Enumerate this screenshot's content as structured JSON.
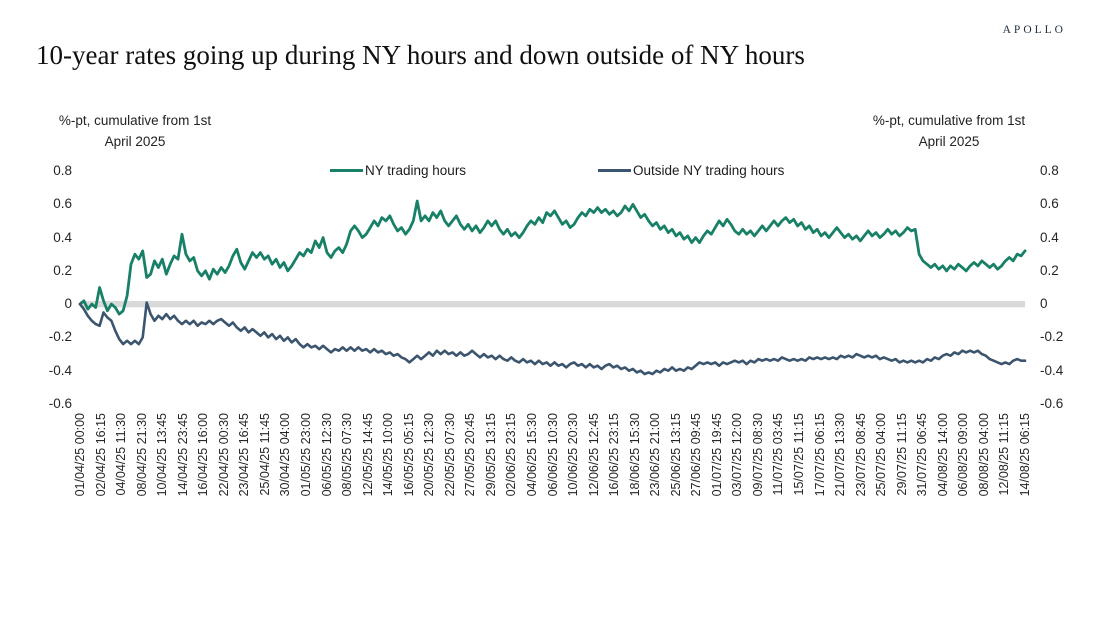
{
  "brand": "APOLLO",
  "title": "10-year rates going up during NY hours and down outside of NY hours",
  "chart_data": {
    "type": "line",
    "title": "10-year rates going up during NY hours and down outside of NY hours",
    "caption_left": {
      "line1": "%-pt, cumulative from 1st",
      "line2": "April 2025"
    },
    "caption_right": {
      "line1": "%-pt, cumulative from 1st",
      "line2": "April 2025"
    },
    "y_axis": {
      "tick_labels": [
        "0.8",
        "0.6",
        "0.4",
        "0.2",
        "0",
        "-0.2",
        "-0.4",
        "-0.6"
      ],
      "range": [
        -0.6,
        0.8
      ],
      "dual_sided": true,
      "grid": false
    },
    "zero_band_color": "#d9d9d9",
    "legend_position": "top-inside",
    "x_ticks": [
      "01/04/25 00:00",
      "02/04/25 16:15",
      "04/04/25 11:30",
      "08/04/25 21:30",
      "10/04/25 13:45",
      "14/04/25 23:45",
      "16/04/25 16:00",
      "22/04/25 00:30",
      "23/04/25 16:45",
      "25/04/25 11:45",
      "30/04/25 04:00",
      "01/05/25 23:00",
      "06/05/25 12:30",
      "08/05/25 07:30",
      "12/05/25 14:45",
      "14/05/25 10:00",
      "16/05/25 05:15",
      "20/05/25 12:30",
      "22/05/25 07:30",
      "27/05/25 20:45",
      "29/05/25 13:15",
      "02/06/25 23:15",
      "04/06/25 15:30",
      "06/06/25 10:30",
      "10/06/25 20:30",
      "12/06/25 12:45",
      "16/06/25 23:15",
      "18/06/25 15:30",
      "23/06/25 21:00",
      "25/06/25 13:15",
      "27/06/25 09:45",
      "01/07/25 19:45",
      "03/07/25 12:00",
      "09/07/25 08:30",
      "11/07/25 03:45",
      "15/07/25 11:15",
      "17/07/25 06:15",
      "21/07/25 13:30",
      "23/07/25 08:45",
      "25/07/25 04:00",
      "29/07/25 11:15",
      "31/07/25 06:45",
      "04/08/25 14:00",
      "06/08/25 09:00",
      "08/08/25 04:00",
      "12/08/25 11:15",
      "14/08/25 06:15"
    ],
    "series": [
      {
        "name": "NY trading hours",
        "color": "#178066",
        "values": [
          0.0,
          0.02,
          -0.03,
          0.0,
          -0.02,
          0.1,
          0.02,
          -0.04,
          0.0,
          -0.02,
          -0.06,
          -0.04,
          0.05,
          0.24,
          0.3,
          0.27,
          0.32,
          0.16,
          0.18,
          0.26,
          0.22,
          0.27,
          0.18,
          0.24,
          0.29,
          0.27,
          0.42,
          0.3,
          0.26,
          0.28,
          0.2,
          0.17,
          0.2,
          0.15,
          0.21,
          0.18,
          0.22,
          0.19,
          0.23,
          0.29,
          0.33,
          0.25,
          0.21,
          0.26,
          0.31,
          0.28,
          0.31,
          0.27,
          0.29,
          0.24,
          0.27,
          0.22,
          0.25,
          0.2,
          0.23,
          0.27,
          0.31,
          0.29,
          0.33,
          0.31,
          0.38,
          0.34,
          0.4,
          0.31,
          0.28,
          0.32,
          0.34,
          0.31,
          0.36,
          0.44,
          0.47,
          0.44,
          0.4,
          0.42,
          0.46,
          0.5,
          0.47,
          0.52,
          0.5,
          0.53,
          0.48,
          0.44,
          0.46,
          0.42,
          0.45,
          0.5,
          0.62,
          0.5,
          0.53,
          0.5,
          0.55,
          0.52,
          0.56,
          0.5,
          0.47,
          0.5,
          0.53,
          0.48,
          0.45,
          0.48,
          0.44,
          0.47,
          0.43,
          0.46,
          0.5,
          0.47,
          0.5,
          0.45,
          0.42,
          0.45,
          0.41,
          0.43,
          0.4,
          0.43,
          0.47,
          0.5,
          0.48,
          0.52,
          0.49,
          0.55,
          0.53,
          0.56,
          0.52,
          0.48,
          0.5,
          0.46,
          0.48,
          0.52,
          0.55,
          0.53,
          0.57,
          0.55,
          0.58,
          0.55,
          0.57,
          0.54,
          0.56,
          0.53,
          0.55,
          0.59,
          0.56,
          0.6,
          0.56,
          0.52,
          0.54,
          0.5,
          0.47,
          0.49,
          0.45,
          0.47,
          0.43,
          0.45,
          0.41,
          0.43,
          0.39,
          0.41,
          0.37,
          0.4,
          0.37,
          0.41,
          0.44,
          0.42,
          0.46,
          0.5,
          0.47,
          0.51,
          0.48,
          0.44,
          0.42,
          0.45,
          0.42,
          0.44,
          0.41,
          0.44,
          0.47,
          0.44,
          0.47,
          0.5,
          0.47,
          0.5,
          0.52,
          0.49,
          0.51,
          0.47,
          0.49,
          0.45,
          0.47,
          0.43,
          0.45,
          0.41,
          0.43,
          0.4,
          0.43,
          0.46,
          0.43,
          0.4,
          0.42,
          0.39,
          0.41,
          0.38,
          0.41,
          0.44,
          0.41,
          0.43,
          0.4,
          0.42,
          0.45,
          0.42,
          0.44,
          0.41,
          0.43,
          0.46,
          0.44,
          0.45,
          0.3,
          0.26,
          0.24,
          0.22,
          0.24,
          0.21,
          0.23,
          0.2,
          0.23,
          0.21,
          0.24,
          0.22,
          0.2,
          0.23,
          0.25,
          0.23,
          0.26,
          0.24,
          0.22,
          0.24,
          0.21,
          0.23,
          0.26,
          0.28,
          0.26,
          0.3,
          0.29,
          0.32
        ]
      },
      {
        "name": "Outside NY trading hours",
        "color": "#3c556e",
        "values": [
          0.0,
          -0.03,
          -0.07,
          -0.1,
          -0.12,
          -0.13,
          -0.05,
          -0.08,
          -0.1,
          -0.16,
          -0.21,
          -0.24,
          -0.22,
          -0.24,
          -0.22,
          -0.24,
          -0.2,
          0.01,
          -0.06,
          -0.1,
          -0.07,
          -0.09,
          -0.06,
          -0.09,
          -0.07,
          -0.1,
          -0.12,
          -0.1,
          -0.12,
          -0.1,
          -0.13,
          -0.11,
          -0.12,
          -0.1,
          -0.12,
          -0.1,
          -0.09,
          -0.11,
          -0.13,
          -0.11,
          -0.14,
          -0.16,
          -0.14,
          -0.17,
          -0.15,
          -0.17,
          -0.19,
          -0.17,
          -0.2,
          -0.18,
          -0.21,
          -0.19,
          -0.22,
          -0.2,
          -0.23,
          -0.21,
          -0.24,
          -0.26,
          -0.24,
          -0.26,
          -0.25,
          -0.27,
          -0.25,
          -0.27,
          -0.29,
          -0.27,
          -0.28,
          -0.26,
          -0.28,
          -0.26,
          -0.28,
          -0.26,
          -0.28,
          -0.27,
          -0.29,
          -0.27,
          -0.29,
          -0.28,
          -0.3,
          -0.29,
          -0.31,
          -0.3,
          -0.32,
          -0.33,
          -0.35,
          -0.33,
          -0.31,
          -0.33,
          -0.31,
          -0.29,
          -0.31,
          -0.28,
          -0.3,
          -0.28,
          -0.3,
          -0.29,
          -0.31,
          -0.29,
          -0.31,
          -0.3,
          -0.28,
          -0.3,
          -0.32,
          -0.3,
          -0.32,
          -0.31,
          -0.33,
          -0.31,
          -0.33,
          -0.34,
          -0.32,
          -0.34,
          -0.35,
          -0.33,
          -0.35,
          -0.34,
          -0.36,
          -0.34,
          -0.36,
          -0.35,
          -0.37,
          -0.35,
          -0.37,
          -0.36,
          -0.38,
          -0.36,
          -0.35,
          -0.37,
          -0.36,
          -0.38,
          -0.36,
          -0.38,
          -0.37,
          -0.39,
          -0.37,
          -0.36,
          -0.38,
          -0.37,
          -0.39,
          -0.38,
          -0.4,
          -0.39,
          -0.41,
          -0.4,
          -0.42,
          -0.41,
          -0.42,
          -0.4,
          -0.41,
          -0.39,
          -0.4,
          -0.38,
          -0.4,
          -0.39,
          -0.4,
          -0.38,
          -0.39,
          -0.37,
          -0.35,
          -0.36,
          -0.35,
          -0.36,
          -0.35,
          -0.37,
          -0.35,
          -0.36,
          -0.35,
          -0.34,
          -0.35,
          -0.34,
          -0.36,
          -0.34,
          -0.35,
          -0.33,
          -0.34,
          -0.33,
          -0.34,
          -0.33,
          -0.34,
          -0.32,
          -0.33,
          -0.34,
          -0.33,
          -0.34,
          -0.33,
          -0.34,
          -0.32,
          -0.33,
          -0.32,
          -0.33,
          -0.32,
          -0.33,
          -0.32,
          -0.33,
          -0.31,
          -0.32,
          -0.31,
          -0.32,
          -0.3,
          -0.31,
          -0.32,
          -0.31,
          -0.32,
          -0.31,
          -0.33,
          -0.32,
          -0.33,
          -0.34,
          -0.33,
          -0.35,
          -0.34,
          -0.35,
          -0.34,
          -0.35,
          -0.34,
          -0.35,
          -0.33,
          -0.34,
          -0.32,
          -0.33,
          -0.31,
          -0.3,
          -0.31,
          -0.29,
          -0.3,
          -0.28,
          -0.29,
          -0.28,
          -0.29,
          -0.28,
          -0.3,
          -0.31,
          -0.33,
          -0.34,
          -0.35,
          -0.36,
          -0.35,
          -0.36,
          -0.34,
          -0.33,
          -0.34,
          -0.34
        ]
      }
    ]
  }
}
